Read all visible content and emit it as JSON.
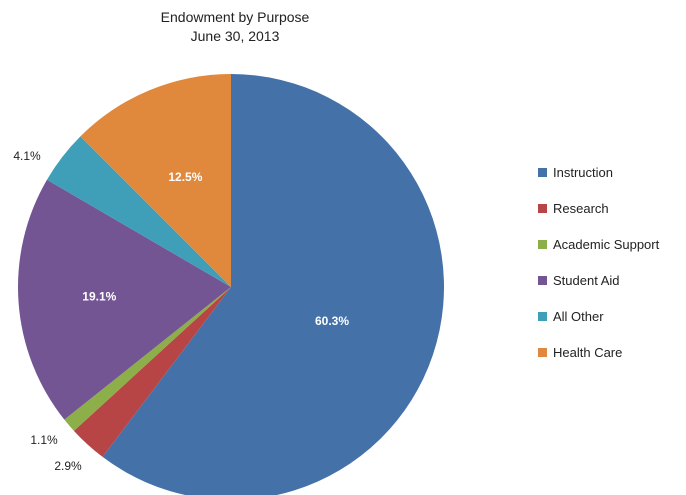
{
  "chart_data": {
    "type": "pie",
    "title": "Endowment by Purpose",
    "subtitle": "June 30, 2013",
    "legend_position": "right",
    "start_angle_deg": 0,
    "direction": "clockwise",
    "slices": [
      {
        "name": "Instruction",
        "value": 60.3,
        "label": "60.3%",
        "color": "#4472A8",
        "label_color": "#ffffff",
        "label_placement": "inside"
      },
      {
        "name": "Research",
        "value": 2.9,
        "label": "2.9%",
        "color": "#B84545",
        "label_color": "#222222",
        "label_placement": "outside"
      },
      {
        "name": "Academic Support",
        "value": 1.1,
        "label": "1.1%",
        "color": "#8CAF4A",
        "label_color": "#222222",
        "label_placement": "outside"
      },
      {
        "name": "Student Aid",
        "value": 19.1,
        "label": "19.1%",
        "color": "#735594",
        "label_color": "#ffffff",
        "label_placement": "inside"
      },
      {
        "name": "All Other",
        "value": 4.1,
        "label": "4.1%",
        "color": "#3F9FB8",
        "label_color": "#222222",
        "label_placement": "outside"
      },
      {
        "name": "Health Care",
        "value": 12.5,
        "label": "12.5%",
        "color": "#E0883C",
        "label_color": "#ffffff",
        "label_placement": "inside"
      }
    ]
  }
}
